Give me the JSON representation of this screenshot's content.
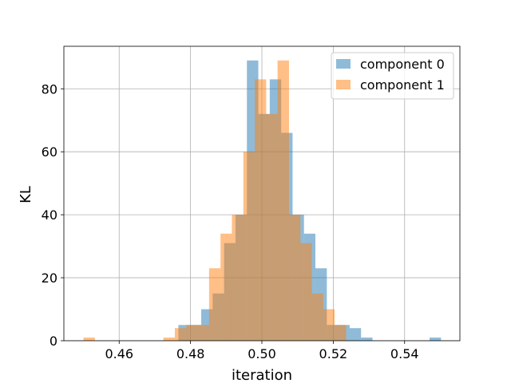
{
  "chart_data": {
    "type": "bar",
    "subtype": "overlapping-histogram",
    "xlabel": "iteration",
    "ylabel": "KL",
    "xlim": [
      0.4445,
      0.5555
    ],
    "ylim": [
      0,
      93.5
    ],
    "xticks": [
      0.46,
      0.48,
      0.5,
      0.52,
      0.54
    ],
    "xtick_labels": [
      "0.46",
      "0.48",
      "0.50",
      "0.52",
      "0.54"
    ],
    "yticks": [
      0,
      20,
      40,
      60,
      80
    ],
    "ytick_labels": [
      "0",
      "20",
      "40",
      "60",
      "80"
    ],
    "grid": true,
    "legend_position": "top-right",
    "series": [
      {
        "name": "component 0",
        "color": "#1f77b4",
        "opacity": 0.5,
        "bin_edges": [
          0.4766,
          0.4798,
          0.483,
          0.4862,
          0.4894,
          0.4926,
          0.4958,
          0.499,
          0.5022,
          0.5054,
          0.5086,
          0.5118,
          0.515,
          0.5182,
          0.5214,
          0.5246,
          0.5278,
          0.531,
          0.5342,
          0.5374,
          0.5406,
          0.5438,
          0.547,
          0.5502
        ],
        "counts": [
          5,
          5,
          10,
          15,
          31,
          40,
          89,
          72,
          83,
          66,
          40,
          34,
          23,
          5,
          5,
          4,
          1,
          0,
          0,
          0,
          0,
          0,
          1
        ]
      },
      {
        "name": "component 1",
        "color": "#ff7f0e",
        "opacity": 0.5,
        "bin_edges": [
          0.45,
          0.4532,
          0.4564,
          0.4596,
          0.4628,
          0.466,
          0.4692,
          0.4724,
          0.4756,
          0.4788,
          0.482,
          0.4852,
          0.4884,
          0.4916,
          0.4948,
          0.498,
          0.5012,
          0.5044,
          0.5076,
          0.5108,
          0.514,
          0.5172,
          0.5204,
          0.5236
        ],
        "counts": [
          1,
          0,
          0,
          0,
          0,
          0,
          0,
          1,
          4,
          5,
          5,
          23,
          34,
          40,
          60,
          83,
          72,
          89,
          40,
          31,
          15,
          10,
          5
        ]
      }
    ]
  }
}
